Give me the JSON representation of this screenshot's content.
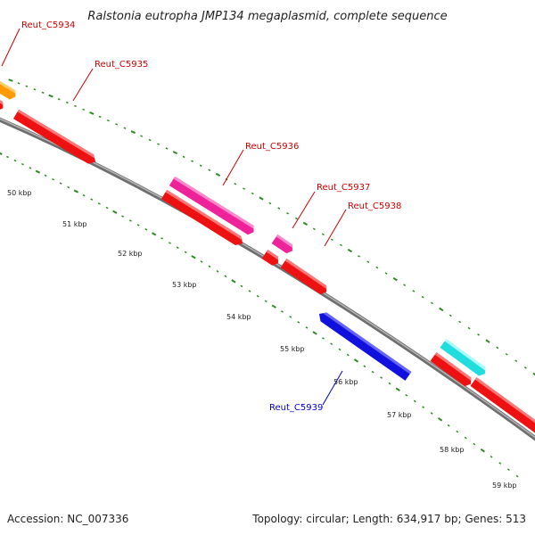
{
  "title": "Ralstonia eutropha JMP134 megaplasmid, complete sequence",
  "footer": {
    "accession": "Accession: NC_007336",
    "topology": "Topology: circular; Length: 634,917 bp; Genes: 513"
  },
  "axis": {
    "unit_labels": [
      "50 kbp",
      "51 kbp",
      "52 kbp",
      "53 kbp",
      "54 kbp",
      "55 kbp",
      "56 kbp",
      "57 kbp",
      "58 kbp",
      "59 kbp"
    ]
  },
  "gene_labels": [
    {
      "name": "Reut_C5934",
      "color": "#cc0000"
    },
    {
      "name": "Reut_C5935",
      "color": "#cc0000"
    },
    {
      "name": "Reut_C5936",
      "color": "#cc0000"
    },
    {
      "name": "Reut_C5937",
      "color": "#cc0000"
    },
    {
      "name": "Reut_C5938",
      "color": "#cc0000"
    },
    {
      "name": "Reut_C5939",
      "color": "#0000cc"
    }
  ],
  "colors": {
    "backbone": "#8c8c8c",
    "tick": "#2e8b22",
    "red_gene": "#ee1111",
    "orange_gene": "#ff9900",
    "magenta_gene": "#ee2299",
    "blue_gene": "#1111dd",
    "cyan_gene": "#22dddd"
  }
}
